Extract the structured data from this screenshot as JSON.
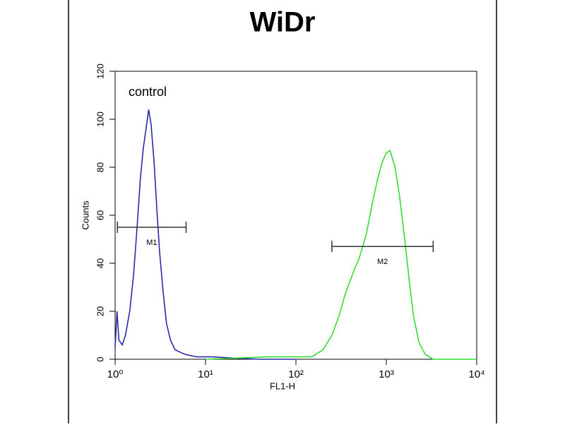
{
  "chart_data": {
    "type": "line",
    "title": "WiDr",
    "x_label": "FL1-H",
    "y_label": "Counts",
    "xscale": "log",
    "xlim": [
      1,
      10000
    ],
    "xticks": [
      {
        "value": 1,
        "label": "10⁰"
      },
      {
        "value": 10,
        "label": "10¹"
      },
      {
        "value": 100,
        "label": "10²"
      },
      {
        "value": 1000,
        "label": "10³"
      },
      {
        "value": 10000,
        "label": "10⁴"
      }
    ],
    "ylim": [
      0,
      120
    ],
    "yticks": [
      0,
      20,
      40,
      60,
      80,
      100,
      120
    ],
    "series": [
      {
        "name": "control",
        "color": "#2a2aa8",
        "x": [
          1.0,
          1.05,
          1.1,
          1.2,
          1.3,
          1.45,
          1.6,
          1.75,
          1.9,
          2.05,
          2.2,
          2.35,
          2.5,
          2.7,
          2.9,
          3.1,
          3.4,
          3.7,
          4.1,
          4.6,
          5.2,
          6,
          8,
          12,
          20,
          40,
          100
        ],
        "values": [
          5,
          20,
          8,
          6,
          10,
          20,
          35,
          55,
          75,
          88,
          96,
          104,
          98,
          82,
          62,
          45,
          28,
          15,
          8,
          4,
          3,
          2,
          1,
          1,
          0.5,
          0,
          0
        ]
      },
      {
        "name": "WiDr",
        "color": "#33dd33",
        "x": [
          10,
          50,
          100,
          150,
          200,
          250,
          300,
          350,
          400,
          450,
          500,
          600,
          700,
          800,
          900,
          1000,
          1100,
          1250,
          1400,
          1600,
          1800,
          2000,
          2300,
          2700,
          3300,
          5000,
          10000
        ],
        "values": [
          0,
          1,
          1,
          1,
          4,
          10,
          18,
          27,
          33,
          38,
          42,
          52,
          65,
          75,
          82,
          86,
          87,
          80,
          68,
          50,
          32,
          18,
          7,
          2,
          0,
          0,
          0
        ]
      }
    ],
    "markers": [
      {
        "label": "M1",
        "x": [
          1.06,
          6.1
        ],
        "y": 55
      },
      {
        "label": "M2",
        "x": [
          250,
          3300
        ],
        "y": 47
      }
    ]
  }
}
